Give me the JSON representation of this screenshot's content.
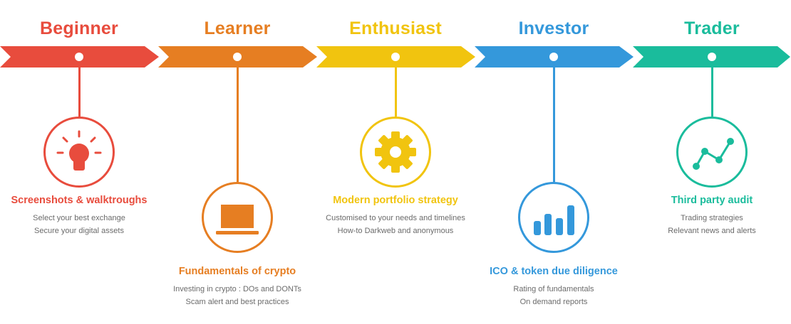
{
  "colors": {
    "beginner": "#e84c3d",
    "learner": "#e67e22",
    "enthusiast": "#f1c40f",
    "investor": "#3498db",
    "trader": "#1abc9c"
  },
  "stages": [
    {
      "title": "Beginner",
      "icon": "lightbulb-icon",
      "heading": "Screenshots & walktroughs",
      "lines": [
        "Select your best exchange",
        "Secure your digital assets"
      ]
    },
    {
      "title": "Learner",
      "icon": "laptop-icon",
      "heading": "Fundamentals of crypto",
      "lines": [
        "Investing in crypto : DOs and DONTs",
        "Scam alert and best practices"
      ]
    },
    {
      "title": "Enthusiast",
      "icon": "gear-icon",
      "heading": "Modern portfolio strategy",
      "lines": [
        "Customised to your needs and timelines",
        "How-to Darkweb and anonymous"
      ]
    },
    {
      "title": "Investor",
      "icon": "bar-chart-icon",
      "heading": "ICO & token due diligence",
      "lines": [
        "Rating of fundamentals",
        "On demand reports"
      ]
    },
    {
      "title": "Trader",
      "icon": "line-chart-icon",
      "heading": "Third party audit",
      "lines": [
        "Trading strategies",
        "Relevant news and alerts"
      ]
    }
  ]
}
